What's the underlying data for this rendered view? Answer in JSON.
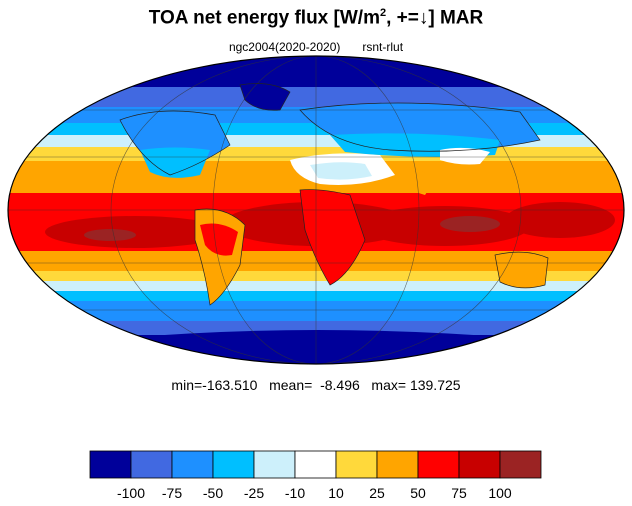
{
  "title_main": "TOA net energy flux  [W/m",
  "title_sup": "2",
  "title_sign": ", +=",
  "title_arrow": "↓",
  "title_end": "] MAR",
  "subtitle_left": "ngc2004(2020-2020)",
  "subtitle_right": "rsnt-rlut",
  "stats": "min=-163.510   mean=  -8.496   max= 139.725",
  "colorbar": {
    "colors": [
      "#00009a",
      "#4169e1",
      "#1e90ff",
      "#00bfff",
      "#cdf0fb",
      "#ffffff",
      "#ffd93b",
      "#ffa500",
      "#ff0000",
      "#c80000",
      "#9b2323"
    ],
    "tick_labels": [
      "-100",
      "-75",
      "-50",
      "-25",
      "-10",
      "10",
      "25",
      "50",
      "75",
      "100"
    ]
  }
}
